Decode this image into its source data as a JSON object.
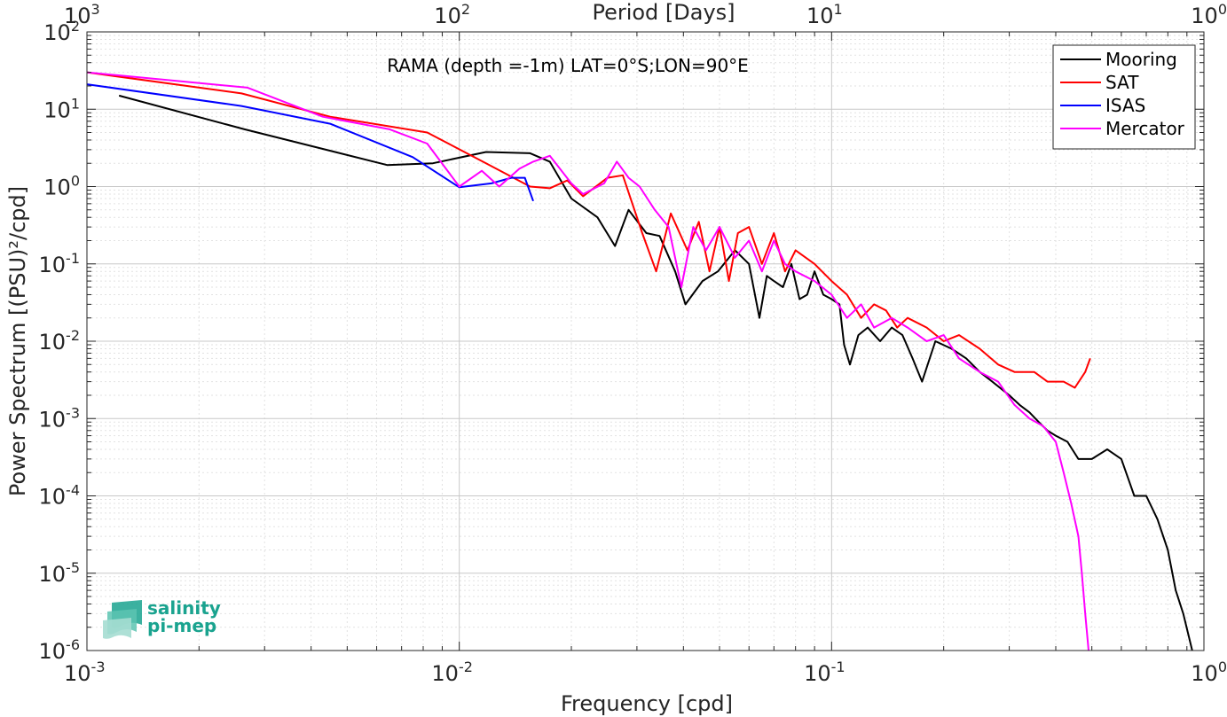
{
  "chart_data": {
    "type": "line",
    "title": "RAMA (depth =-1m) LAT=0°S;LON=90°E",
    "xlabel": "Frequency [cpd]",
    "ylabel": "Power Spectrum [(PSU)²/cpd]",
    "x2label": "Period [Days]",
    "xscale": "log",
    "yscale": "log",
    "xlim": [
      0.001,
      1
    ],
    "ylim": [
      1e-06,
      100
    ],
    "x2lim": [
      1000,
      1
    ],
    "grid": true,
    "legend_position": "top-right",
    "x_ticks": [
      "10",
      "10",
      "10",
      "10"
    ],
    "x_tick_exp": [
      "-3",
      "-2",
      "-1",
      "0"
    ],
    "x2_ticks": [
      "10",
      "10",
      "10",
      "10"
    ],
    "x2_tick_exp": [
      "3",
      "2",
      "1",
      "0"
    ],
    "y_ticks": [
      "10",
      "10",
      "10",
      "10",
      "10",
      "10",
      "10",
      "10",
      "10"
    ],
    "y_tick_exp": [
      "2",
      "1",
      "0",
      "-1",
      "-2",
      "-3",
      "-4",
      "-5",
      "-6"
    ],
    "series": [
      {
        "name": "Mooring",
        "color": "#000000",
        "points": [
          [
            0.00122,
            15
          ],
          [
            0.00265,
            5.5
          ],
          [
            0.0064,
            1.9
          ],
          [
            0.0085,
            2.0
          ],
          [
            0.0118,
            2.8
          ],
          [
            0.0155,
            2.7
          ],
          [
            0.0175,
            2.1
          ],
          [
            0.02,
            0.7
          ],
          [
            0.0235,
            0.4
          ],
          [
            0.0262,
            0.17
          ],
          [
            0.0285,
            0.5
          ],
          [
            0.0318,
            0.25
          ],
          [
            0.0345,
            0.23
          ],
          [
            0.038,
            0.08
          ],
          [
            0.0405,
            0.03
          ],
          [
            0.045,
            0.06
          ],
          [
            0.0495,
            0.08
          ],
          [
            0.055,
            0.15
          ],
          [
            0.06,
            0.1
          ],
          [
            0.064,
            0.02
          ],
          [
            0.067,
            0.07
          ],
          [
            0.07,
            0.06
          ],
          [
            0.074,
            0.05
          ],
          [
            0.078,
            0.1
          ],
          [
            0.082,
            0.035
          ],
          [
            0.086,
            0.04
          ],
          [
            0.09,
            0.08
          ],
          [
            0.095,
            0.04
          ],
          [
            0.1,
            0.035
          ],
          [
            0.105,
            0.03
          ],
          [
            0.108,
            0.009
          ],
          [
            0.112,
            0.005
          ],
          [
            0.118,
            0.012
          ],
          [
            0.125,
            0.015
          ],
          [
            0.135,
            0.01
          ],
          [
            0.145,
            0.015
          ],
          [
            0.155,
            0.012
          ],
          [
            0.165,
            0.006
          ],
          [
            0.175,
            0.003
          ],
          [
            0.19,
            0.01
          ],
          [
            0.21,
            0.008
          ],
          [
            0.23,
            0.006
          ],
          [
            0.25,
            0.004
          ],
          [
            0.27,
            0.003
          ],
          [
            0.3,
            0.002
          ],
          [
            0.32,
            0.0015
          ],
          [
            0.34,
            0.0012
          ],
          [
            0.36,
            0.0009
          ],
          [
            0.38,
            0.0007
          ],
          [
            0.4,
            0.0006
          ],
          [
            0.43,
            0.0005
          ],
          [
            0.46,
            0.0003
          ],
          [
            0.5,
            0.0003
          ],
          [
            0.55,
            0.0004
          ],
          [
            0.6,
            0.0003
          ],
          [
            0.65,
            0.0001
          ],
          [
            0.7,
            0.0001
          ],
          [
            0.75,
            5e-05
          ],
          [
            0.8,
            2e-05
          ],
          [
            0.84,
            6e-06
          ],
          [
            0.88,
            3e-06
          ],
          [
            0.93,
            1e-06
          ]
        ]
      },
      {
        "name": "SAT",
        "color": "#ff0000",
        "points": [
          [
            0.001,
            30
          ],
          [
            0.0026,
            16
          ],
          [
            0.0045,
            8
          ],
          [
            0.0082,
            5
          ],
          [
            0.0118,
            2.0
          ],
          [
            0.0155,
            1.0
          ],
          [
            0.0175,
            0.95
          ],
          [
            0.0195,
            1.2
          ],
          [
            0.0215,
            0.75
          ],
          [
            0.025,
            1.3
          ],
          [
            0.0275,
            1.4
          ],
          [
            0.031,
            0.25
          ],
          [
            0.0338,
            0.08
          ],
          [
            0.037,
            0.45
          ],
          [
            0.041,
            0.15
          ],
          [
            0.044,
            0.35
          ],
          [
            0.047,
            0.08
          ],
          [
            0.05,
            0.3
          ],
          [
            0.053,
            0.06
          ],
          [
            0.056,
            0.25
          ],
          [
            0.06,
            0.3
          ],
          [
            0.065,
            0.1
          ],
          [
            0.07,
            0.25
          ],
          [
            0.075,
            0.08
          ],
          [
            0.08,
            0.15
          ],
          [
            0.09,
            0.1
          ],
          [
            0.1,
            0.06
          ],
          [
            0.11,
            0.04
          ],
          [
            0.12,
            0.02
          ],
          [
            0.13,
            0.03
          ],
          [
            0.14,
            0.025
          ],
          [
            0.15,
            0.015
          ],
          [
            0.16,
            0.02
          ],
          [
            0.18,
            0.015
          ],
          [
            0.2,
            0.01
          ],
          [
            0.22,
            0.012
          ],
          [
            0.25,
            0.008
          ],
          [
            0.28,
            0.005
          ],
          [
            0.31,
            0.004
          ],
          [
            0.35,
            0.004
          ],
          [
            0.38,
            0.003
          ],
          [
            0.42,
            0.003
          ],
          [
            0.45,
            0.0025
          ],
          [
            0.48,
            0.004
          ],
          [
            0.495,
            0.006
          ]
        ]
      },
      {
        "name": "ISAS",
        "color": "#0000ff",
        "points": [
          [
            0.001,
            21
          ],
          [
            0.0026,
            11
          ],
          [
            0.0045,
            6.5
          ],
          [
            0.0075,
            2.4
          ],
          [
            0.01,
            0.98
          ],
          [
            0.0122,
            1.1
          ],
          [
            0.0138,
            1.3
          ],
          [
            0.015,
            1.3
          ],
          [
            0.0158,
            0.65
          ]
        ]
      },
      {
        "name": "Mercator",
        "color": "#ff00ff",
        "points": [
          [
            0.001,
            30
          ],
          [
            0.0027,
            19
          ],
          [
            0.0043,
            8
          ],
          [
            0.0065,
            5.5
          ],
          [
            0.0082,
            3.6
          ],
          [
            0.01,
            1.0
          ],
          [
            0.0115,
            1.6
          ],
          [
            0.0128,
            1.0
          ],
          [
            0.0145,
            1.7
          ],
          [
            0.0158,
            2.1
          ],
          [
            0.0175,
            2.5
          ],
          [
            0.02,
            1.1
          ],
          [
            0.0215,
            0.8
          ],
          [
            0.0245,
            1.1
          ],
          [
            0.0265,
            2.1
          ],
          [
            0.0285,
            1.3
          ],
          [
            0.0305,
            1.0
          ],
          [
            0.0335,
            0.5
          ],
          [
            0.0365,
            0.3
          ],
          [
            0.0395,
            0.05
          ],
          [
            0.0425,
            0.3
          ],
          [
            0.046,
            0.15
          ],
          [
            0.05,
            0.3
          ],
          [
            0.055,
            0.12
          ],
          [
            0.06,
            0.2
          ],
          [
            0.065,
            0.08
          ],
          [
            0.07,
            0.2
          ],
          [
            0.075,
            0.1
          ],
          [
            0.08,
            0.08
          ],
          [
            0.09,
            0.06
          ],
          [
            0.1,
            0.04
          ],
          [
            0.11,
            0.02
          ],
          [
            0.12,
            0.03
          ],
          [
            0.13,
            0.015
          ],
          [
            0.145,
            0.02
          ],
          [
            0.16,
            0.015
          ],
          [
            0.18,
            0.01
          ],
          [
            0.2,
            0.012
          ],
          [
            0.22,
            0.006
          ],
          [
            0.25,
            0.004
          ],
          [
            0.28,
            0.003
          ],
          [
            0.31,
            0.0015
          ],
          [
            0.34,
            0.001
          ],
          [
            0.37,
            0.0008
          ],
          [
            0.4,
            0.0005
          ],
          [
            0.42,
            0.0002
          ],
          [
            0.44,
            8e-05
          ],
          [
            0.46,
            3e-05
          ],
          [
            0.47,
            1e-05
          ],
          [
            0.48,
            3e-06
          ],
          [
            0.49,
            1e-06
          ]
        ]
      }
    ]
  },
  "logo": {
    "line1": "salinity",
    "line2": "pi-mep",
    "color": "#1aa38f"
  }
}
